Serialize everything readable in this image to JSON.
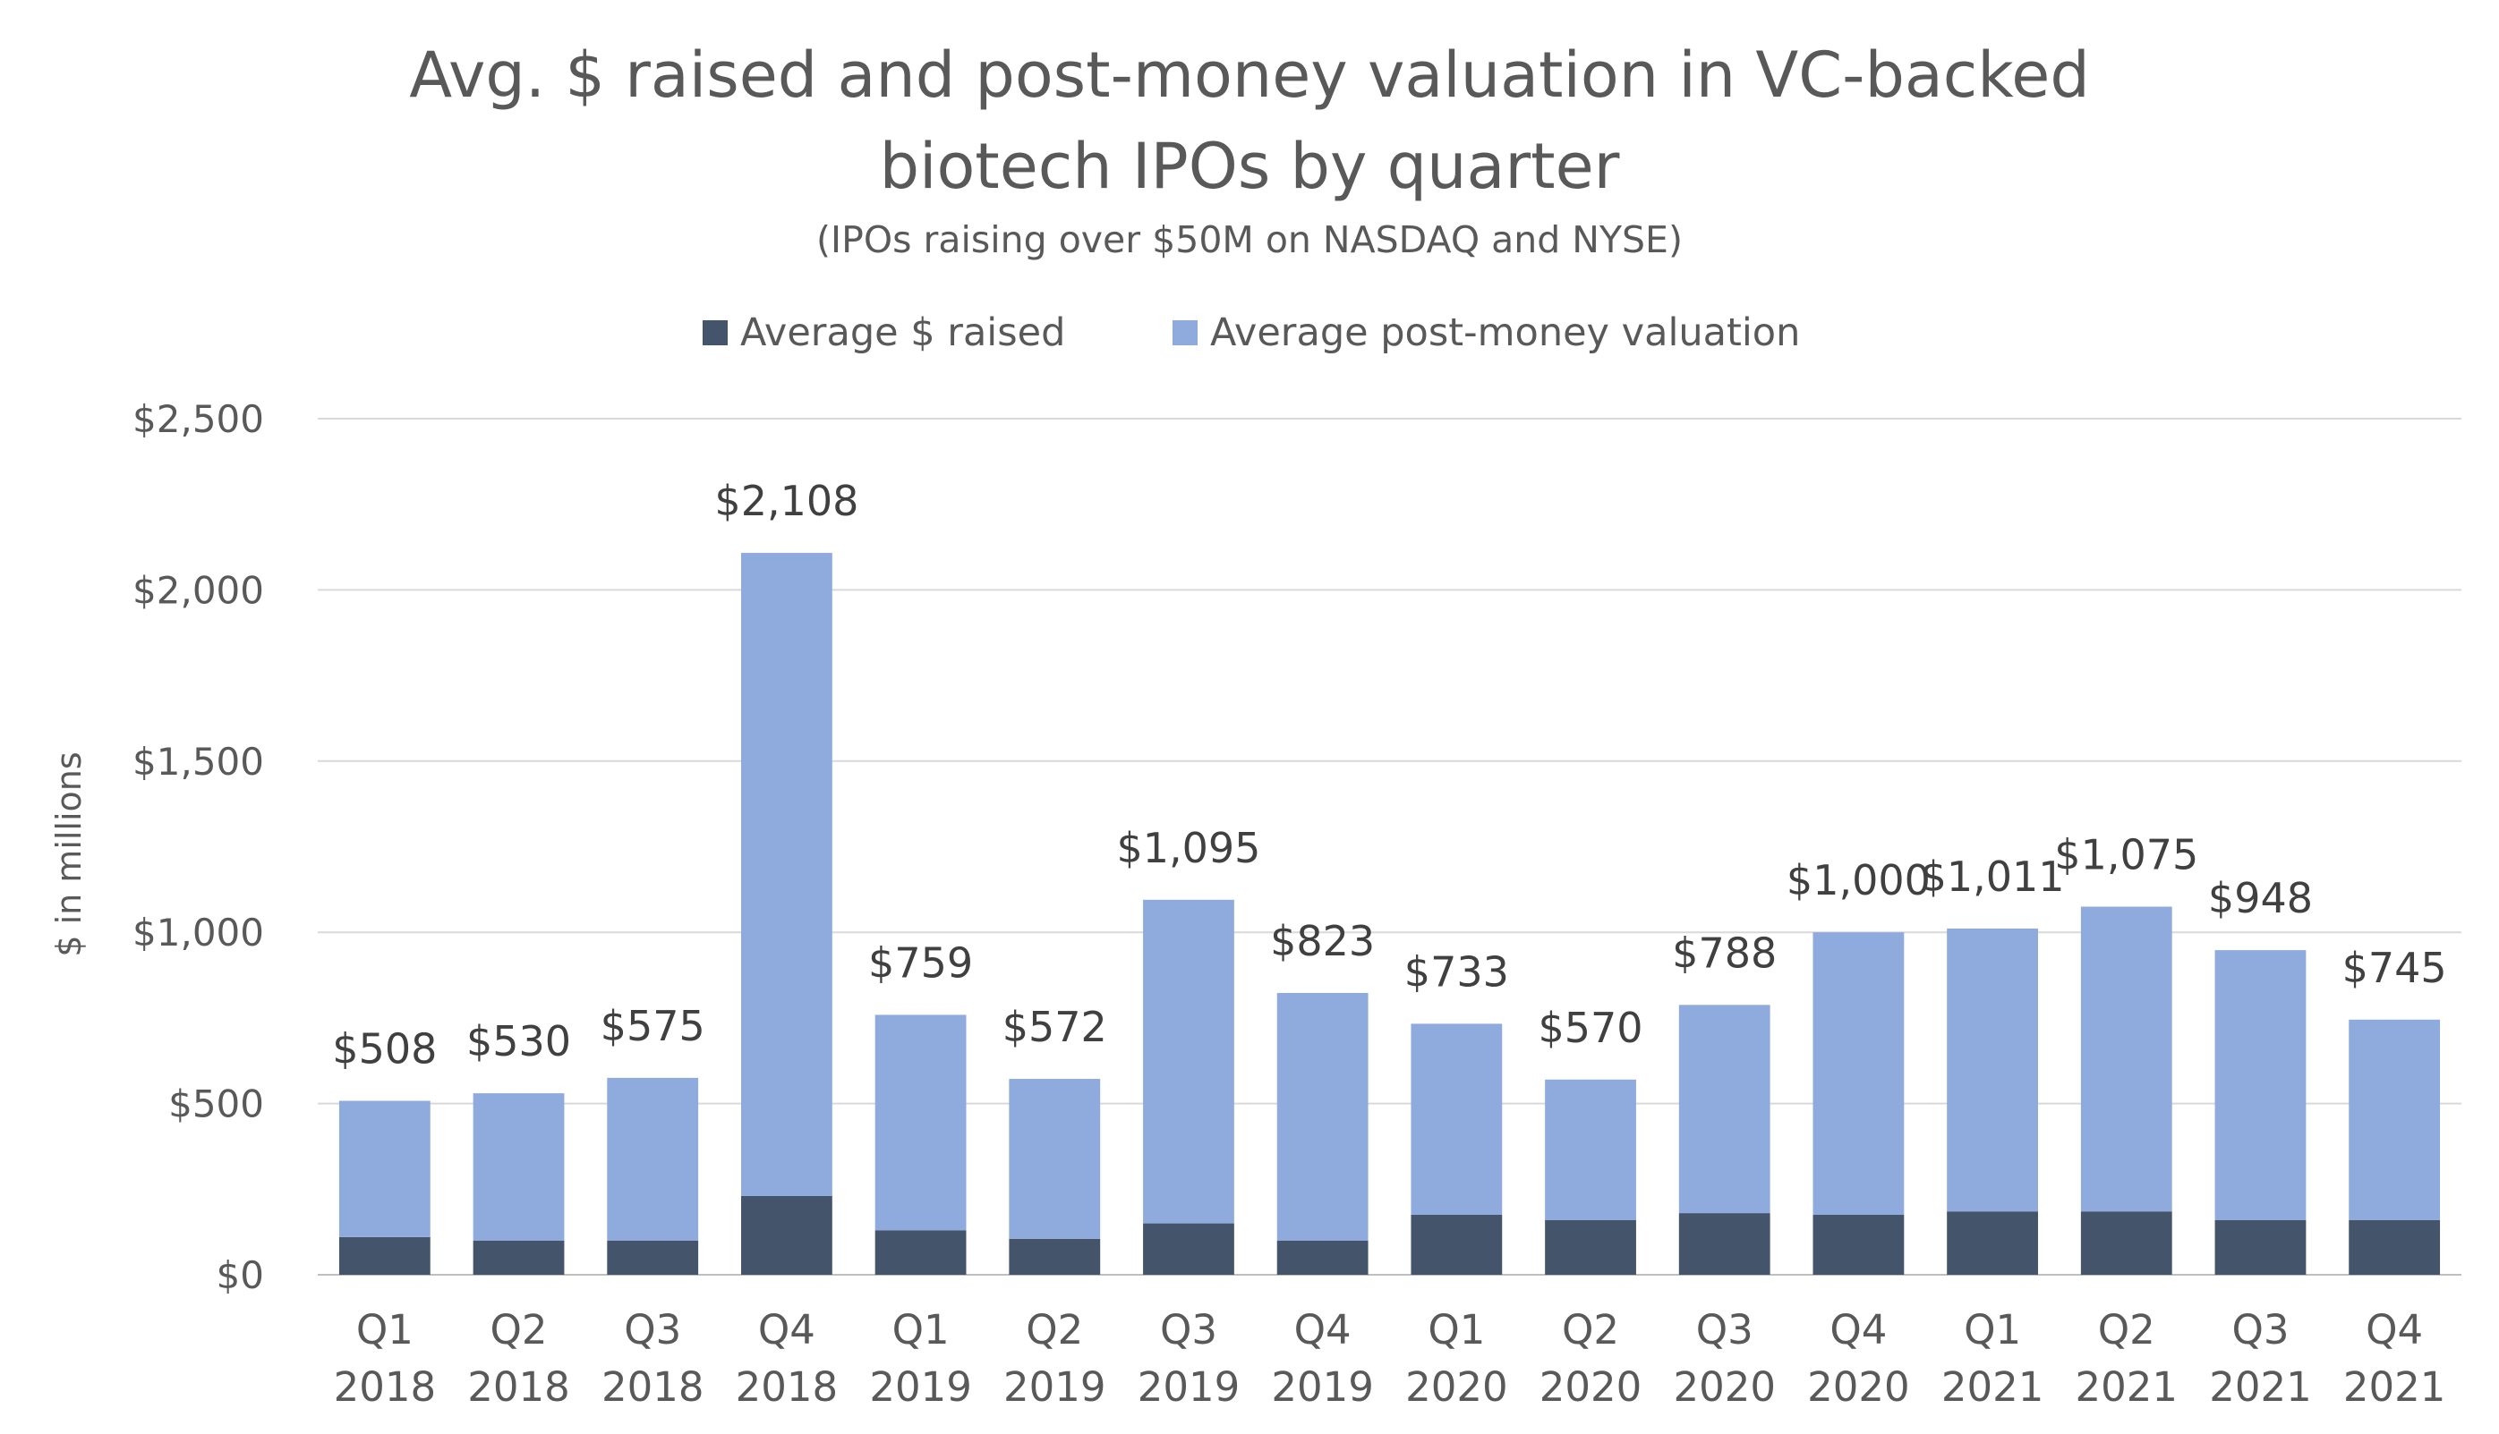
{
  "chart_data": {
    "type": "bar",
    "stacked": true,
    "title_line1": "Avg. $ raised and post-money valuation in VC-backed",
    "title_line2": "biotech IPOs by quarter",
    "subtitle": "(IPOs raising over $50M on NASDAQ and NYSE)",
    "ylabel": "$ in millions",
    "xlabel": "",
    "ylim": [
      0,
      2500
    ],
    "yticks": [
      0,
      500,
      1000,
      1500,
      2000,
      2500
    ],
    "ytick_labels": [
      "$0",
      "$500",
      "$1,000",
      "$1,500",
      "$2,000",
      "$2,500"
    ],
    "grid": true,
    "legend_position": "top-center",
    "categories": [
      [
        "Q1",
        "2018"
      ],
      [
        "Q2",
        "2018"
      ],
      [
        "Q3",
        "2018"
      ],
      [
        "Q4",
        "2018"
      ],
      [
        "Q1",
        "2019"
      ],
      [
        "Q2",
        "2019"
      ],
      [
        "Q3",
        "2019"
      ],
      [
        "Q4",
        "2019"
      ],
      [
        "Q1",
        "2020"
      ],
      [
        "Q2",
        "2020"
      ],
      [
        "Q3",
        "2020"
      ],
      [
        "Q4",
        "2020"
      ],
      [
        "Q1",
        "2021"
      ],
      [
        "Q2",
        "2021"
      ],
      [
        "Q3",
        "2021"
      ],
      [
        "Q4",
        "2021"
      ]
    ],
    "series": [
      {
        "name": "Average $ raised",
        "color": "#44546a",
        "values": [
          110,
          100,
          100,
          230,
          130,
          105,
          150,
          100,
          175,
          160,
          180,
          175,
          185,
          185,
          160,
          160
        ]
      },
      {
        "name": "Average post-money valuation",
        "color": "#8faadc",
        "values": [
          398,
          430,
          475,
          1878,
          629,
          467,
          945,
          723,
          558,
          410,
          608,
          825,
          826,
          890,
          788,
          585
        ]
      }
    ],
    "totals": [
      508,
      530,
      575,
      2108,
      759,
      572,
      1095,
      823,
      733,
      570,
      788,
      1000,
      1011,
      1075,
      948,
      745
    ],
    "total_labels": [
      "$508",
      "$530",
      "$575",
      "$2,108",
      "$759",
      "$572",
      "$1,095",
      "$823",
      "$733",
      "$570",
      "$788",
      "$1,000",
      "$1,011",
      "$1,075",
      "$948",
      "$745"
    ]
  }
}
